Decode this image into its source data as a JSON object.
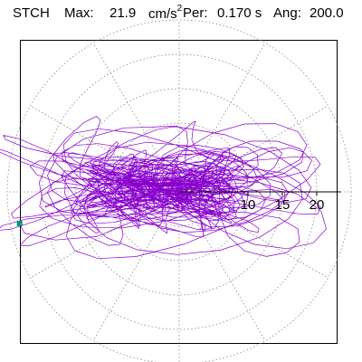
{
  "header": {
    "station": "STCH",
    "max_label": "Max:",
    "max_value": "21.9",
    "max_unit_base": "cm/s",
    "max_unit_exp": "2",
    "per_label": "Per:",
    "per_value": "0.170 s",
    "ang_label": "Ang:",
    "ang_value": "200.0"
  },
  "chart_data": {
    "type": "line",
    "projection": "polar",
    "radial_ticks": [
      "10",
      "15",
      "20"
    ],
    "radial_tick_values": [
      10,
      15,
      20
    ],
    "rings": [
      5,
      10,
      15,
      20,
      25
    ],
    "spokes_deg": [
      0,
      30,
      60,
      90,
      120,
      150,
      180,
      210,
      240,
      270,
      300,
      330
    ],
    "xlim": [
      -25,
      25
    ],
    "ylim": [
      -25,
      25
    ],
    "grid": true,
    "series": [
      {
        "color": "#8800cc",
        "end_marker_color": "#009977",
        "end_point": [
          -23.2,
          -4.6
        ],
        "description_points": "particle-motion trace; points approximated",
        "x": [],
        "y": []
      }
    ]
  },
  "colors": {
    "trace": "#8800cc",
    "marker": "#009977",
    "grid": "#888888",
    "axis": "#000000"
  }
}
